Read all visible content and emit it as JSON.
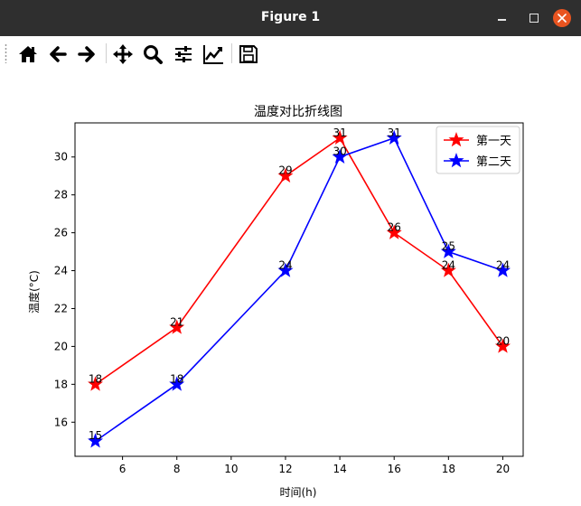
{
  "window": {
    "title": "Figure 1"
  },
  "toolbar": {
    "buttons": [
      {
        "name": "home-button",
        "icon": "home-icon"
      },
      {
        "name": "back-button",
        "icon": "arrow-left-icon"
      },
      {
        "name": "forward-button",
        "icon": "arrow-right-icon"
      },
      {
        "name": "pan-button",
        "icon": "move-icon"
      },
      {
        "name": "zoom-button",
        "icon": "magnifier-icon"
      },
      {
        "name": "configure-subplots-button",
        "icon": "sliders-icon"
      },
      {
        "name": "edit-axes-button",
        "icon": "line-chart-icon"
      },
      {
        "name": "save-button",
        "icon": "floppy-disk-icon"
      }
    ]
  },
  "chart_data": {
    "type": "line",
    "title": "温度对比折线图",
    "xlabel": "时间(h)",
    "ylabel": "温度(°C)",
    "x": [
      5,
      8,
      12,
      14,
      16,
      18,
      20
    ],
    "xlim": [
      4.25,
      20.75
    ],
    "ylim": [
      14.2,
      31.8
    ],
    "xticks": [
      6,
      8,
      10,
      12,
      14,
      16,
      18,
      20
    ],
    "yticks": [
      16,
      18,
      20,
      22,
      24,
      26,
      28,
      30
    ],
    "grid": false,
    "legend_position": "top-right",
    "marker": "star",
    "series": [
      {
        "name": "第一天",
        "color": "#ff0000",
        "values": [
          18,
          21,
          29,
          31,
          26,
          24,
          20
        ]
      },
      {
        "name": "第二天",
        "color": "#0000ff",
        "values": [
          15,
          18,
          24,
          30,
          31,
          25,
          24
        ]
      }
    ]
  }
}
